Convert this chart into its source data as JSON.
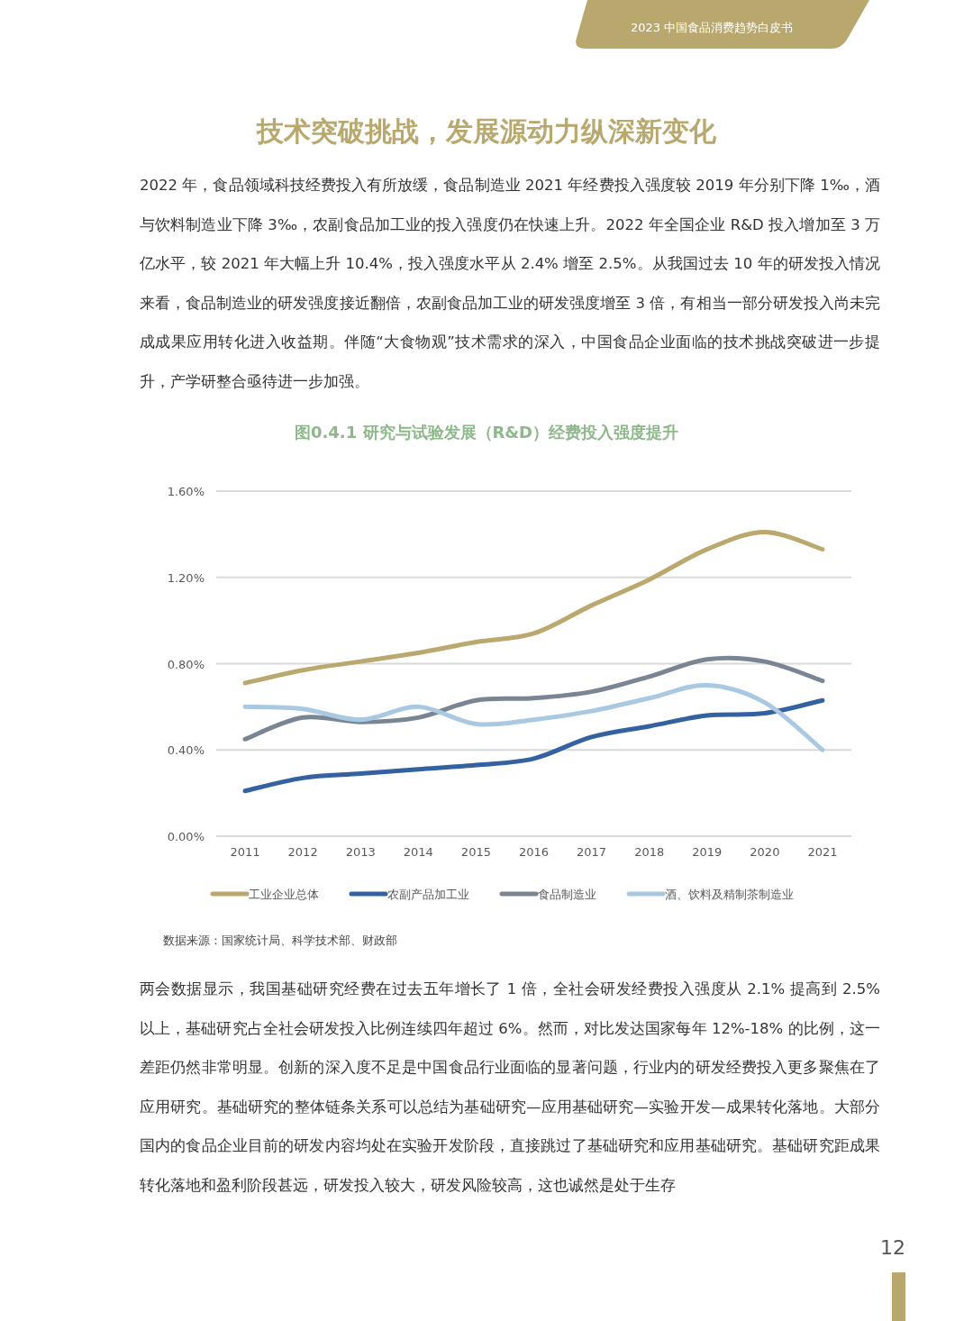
{
  "chart_data": {
    "type": "line",
    "title": "图0.4.1 研究与试验发展（R&D）经费投入强度提升",
    "categories": [
      "2011",
      "2012",
      "2013",
      "2014",
      "2015",
      "2016",
      "2017",
      "2018",
      "2019",
      "2020",
      "2021"
    ],
    "series": [
      {
        "name": "工业企业总体",
        "color": "#bba86f",
        "values": [
          0.71,
          0.77,
          0.81,
          0.85,
          0.9,
          0.94,
          1.07,
          1.19,
          1.33,
          1.41,
          1.33
        ]
      },
      {
        "name": "农副产品加工业",
        "color": "#3462a0",
        "values": [
          0.21,
          0.27,
          0.29,
          0.31,
          0.33,
          0.36,
          0.46,
          0.51,
          0.56,
          0.57,
          0.63
        ]
      },
      {
        "name": "食品制造业",
        "color": "#7a8594",
        "values": [
          0.45,
          0.55,
          0.53,
          0.55,
          0.63,
          0.64,
          0.67,
          0.74,
          0.82,
          0.81,
          0.72
        ]
      },
      {
        "name": "酒、饮料及精制茶制造业",
        "color": "#a9c8e1",
        "values": [
          0.6,
          0.59,
          0.54,
          0.6,
          0.52,
          0.54,
          0.58,
          0.64,
          0.7,
          0.62,
          0.4
        ]
      }
    ],
    "ylim": [
      0,
      1.6
    ],
    "yticks": [
      {
        "value": 0,
        "label": "0.00%"
      },
      {
        "value": 0.4,
        "label": "0.40%"
      },
      {
        "value": 0.8,
        "label": "0.80%"
      },
      {
        "value": 1.2,
        "label": "1.20%"
      },
      {
        "value": 1.6,
        "label": "1.60%"
      }
    ],
    "grid": "y",
    "legend": "bottom",
    "annotations": [
      "2023 中国食品消费趋势白皮书",
      "技术突破挑战，发展源动力纵深新变化",
      "2022 年，食品领域科技经费投入有所放缓，食品制造业 2021 年经费投入强度较 2019 年分别下降 1‰，酒与饮料制造业下降 3‰，农副食品加工业的投入强度仍在快速上升。2022 年全国企业 R&D 投入增加至 3 万亿水平，较 2021 年大幅上升 10.4%，投入强度水平从 2.4% 增至 2.5%。从我国过去 10 年的研发投入情况来看，食品制造业的研发强度接近翻倍，农副食品加工业的研发强度增至 3 倍，有相当一部分研发投入尚未完成成果应用转化进入收益期。伴随“大食物观”技术需求的深入，中国食品企业面临的技术挑战突破进一步提升，产学研整合亟待进一步加强。",
      "数据来源：国家统计局、科学技术部、财政部",
      "两会数据显示，我国基础研究经费在过去五年增长了 1 倍，全社会研发经费投入强度从 2.1% 提高到 2.5% 以上，基础研究占全社会研发投入比例连续四年超过 6%。然而，对比发达国家每年 12%-18% 的比例，这一差距仍然非常明显。创新的深入度不足是中国食品行业面临的显著问题，行业内的研发经费投入更多聚焦在了应用研究。基础研究的整体链条关系可以总结为基础研究—应用基础研究—实验开发—成果转化落地。大部分国内的食品企业目前的研发内容均处在实验开发阶段，直接跳过了基础研究和应用基础研究。基础研究距成果转化落地和盈利阶段甚远，研发投入较大，研发风险较高，这也诚然是处于生存",
      "12"
    ]
  }
}
